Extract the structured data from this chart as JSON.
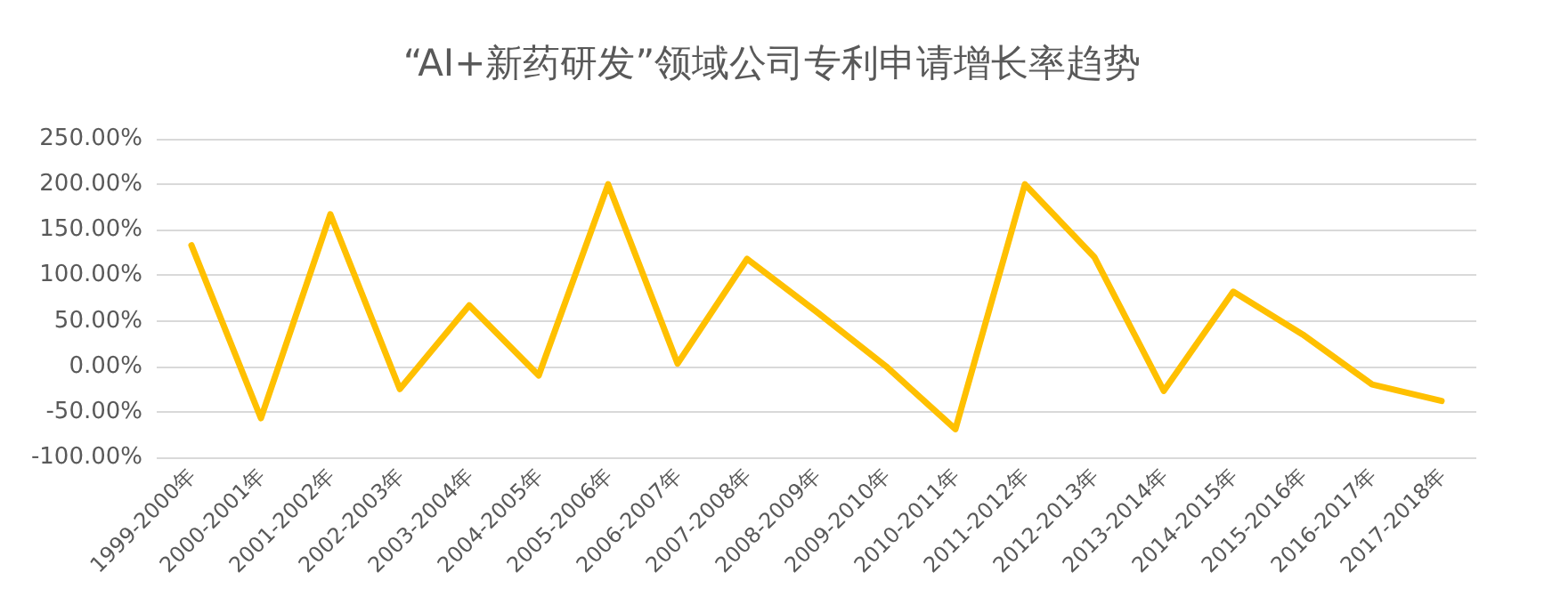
{
  "chart_data": {
    "type": "line",
    "title": "“AI+新药研发”领域公司专利申请增长率趋势",
    "categories": [
      "1999-2000年",
      "2000-2001年",
      "2001-2002年",
      "2002-2003年",
      "2003-2004年",
      "2004-2005年",
      "2005-2006年",
      "2006-2007年",
      "2007-2008年",
      "2008-2009年",
      "2009-2010年",
      "2010-2011年",
      "2011-2012年",
      "2012-2013年",
      "2013-2014年",
      "2014-2015年",
      "2015-2016年",
      "2016-2017年",
      "2017-2018年"
    ],
    "series": [
      {
        "color": "#ffc000",
        "values": [
          133,
          -57,
          167,
          -25,
          67,
          -10,
          200,
          3,
          118,
          60,
          0,
          -69,
          200,
          120,
          -27,
          82,
          35,
          -20,
          -38
        ]
      }
    ],
    "ylim": [
      -100,
      250
    ],
    "yticks": [
      {
        "value": -100,
        "label": "-100.00%"
      },
      {
        "value": -50,
        "label": "-50.00%"
      },
      {
        "value": 0,
        "label": "0.00%"
      },
      {
        "value": 50,
        "label": "50.00%"
      },
      {
        "value": 100,
        "label": "100.00%"
      },
      {
        "value": 150,
        "label": "150.00%"
      },
      {
        "value": 200,
        "label": "200.00%"
      },
      {
        "value": 250,
        "label": "250.00%"
      }
    ],
    "grid": "y",
    "marker": "none",
    "line_style": "solid"
  }
}
